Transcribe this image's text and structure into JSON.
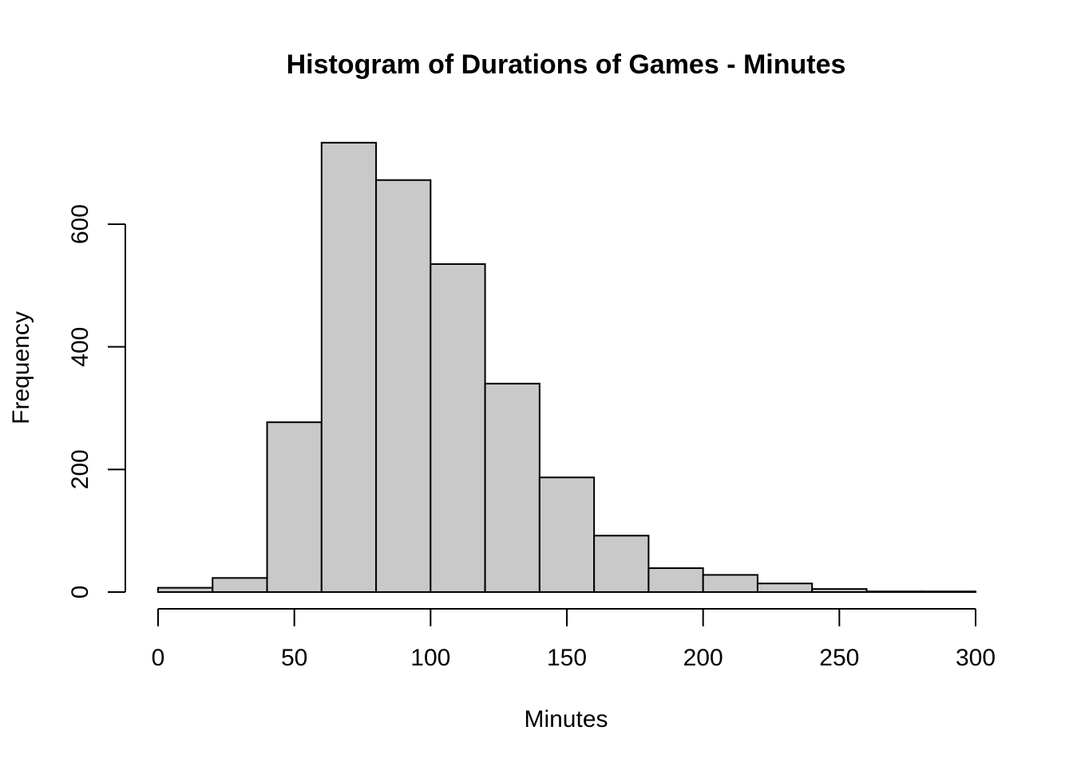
{
  "chart_data": {
    "type": "bar",
    "title": "Histogram of Durations of Games - Minutes",
    "xlabel": "Minutes",
    "ylabel": "Frequency",
    "bins": [
      {
        "start": 0,
        "end": 20,
        "count": 7
      },
      {
        "start": 20,
        "end": 40,
        "count": 23
      },
      {
        "start": 40,
        "end": 60,
        "count": 277
      },
      {
        "start": 60,
        "end": 80,
        "count": 733
      },
      {
        "start": 80,
        "end": 100,
        "count": 672
      },
      {
        "start": 100,
        "end": 120,
        "count": 535
      },
      {
        "start": 120,
        "end": 140,
        "count": 340
      },
      {
        "start": 140,
        "end": 160,
        "count": 187
      },
      {
        "start": 160,
        "end": 180,
        "count": 92
      },
      {
        "start": 180,
        "end": 200,
        "count": 39
      },
      {
        "start": 200,
        "end": 220,
        "count": 28
      },
      {
        "start": 220,
        "end": 240,
        "count": 14
      },
      {
        "start": 240,
        "end": 260,
        "count": 5
      },
      {
        "start": 260,
        "end": 280,
        "count": 1
      },
      {
        "start": 280,
        "end": 300,
        "count": 1
      }
    ],
    "x_ticks": [
      "0",
      "50",
      "100",
      "150",
      "200",
      "250",
      "300"
    ],
    "y_ticks": [
      "0",
      "200",
      "400",
      "600"
    ],
    "xlim": [
      0,
      300
    ],
    "ylim": [
      0,
      733
    ],
    "grid": false,
    "bar_fill": "#c9c9c9",
    "bar_stroke": "#000000"
  }
}
